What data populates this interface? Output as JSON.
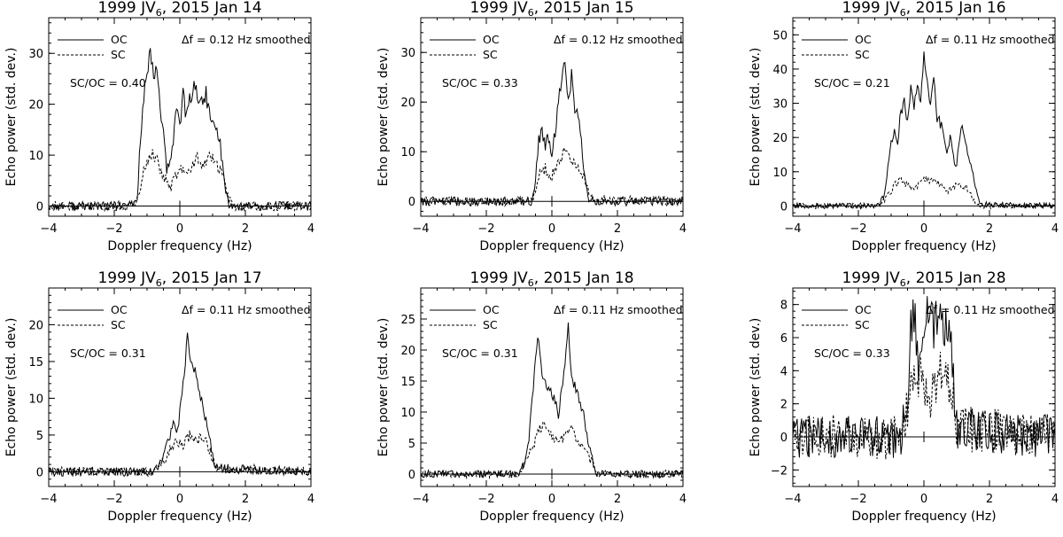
{
  "figure": {
    "common": {
      "xlabel": "Doppler frequency (Hz)",
      "ylabel": "Echo power (std. dev.)",
      "legend": [
        "OC",
        "SC"
      ],
      "xlim": [
        -4,
        4
      ],
      "xticks": [
        -4,
        -2,
        0,
        2,
        4
      ]
    }
  },
  "chart_data": [
    {
      "type": "line",
      "title_object": "1999 JV",
      "title_sub": "6",
      "title_date": ", 2015 Jan 14",
      "df_label": "Δf = 0.12 Hz smoothed",
      "ratio_label": "SC/OC = 0.40",
      "xlabel": "Doppler frequency (Hz)",
      "ylabel": "Echo power (std. dev.)",
      "ylim": [
        -2,
        37
      ],
      "yticks": [
        0,
        10,
        20,
        30
      ],
      "seed": 11,
      "noise": 0.9,
      "series": [
        {
          "name": "OC",
          "style": "solid",
          "x": [
            -4,
            -1.6,
            -1.3,
            -1.2,
            -1.1,
            -1.0,
            -0.9,
            -0.8,
            -0.7,
            -0.6,
            -0.5,
            -0.4,
            -0.3,
            -0.2,
            -0.1,
            0.0,
            0.1,
            0.2,
            0.3,
            0.4,
            0.5,
            0.6,
            0.7,
            0.8,
            0.9,
            1.0,
            1.1,
            1.2,
            1.3,
            1.4,
            1.5,
            1.6,
            4
          ],
          "values": [
            0,
            0,
            1,
            14,
            21,
            26,
            29.5,
            25,
            27,
            20,
            14,
            7,
            8,
            13,
            20,
            16,
            22,
            17,
            21,
            23,
            24,
            19,
            21,
            22,
            18,
            16,
            15,
            14,
            8,
            3,
            0.5,
            0,
            0
          ]
        },
        {
          "name": "SC",
          "style": "dashed",
          "x": [
            -4,
            -1.6,
            -1.3,
            -1.1,
            -0.9,
            -0.7,
            -0.5,
            -0.3,
            -0.1,
            0.1,
            0.3,
            0.5,
            0.7,
            0.9,
            1.1,
            1.3,
            1.5,
            1.7,
            4
          ],
          "values": [
            0,
            0,
            1,
            7,
            10.5,
            9,
            6,
            3.5,
            6,
            8,
            7,
            9.5,
            8,
            10,
            8,
            6,
            1.5,
            0,
            0
          ]
        }
      ]
    },
    {
      "type": "line",
      "title_object": "1999 JV",
      "title_sub": "6",
      "title_date": ", 2015 Jan 15",
      "df_label": "Δf = 0.12 Hz smoothed",
      "ratio_label": "SC/OC = 0.33",
      "xlabel": "Doppler frequency (Hz)",
      "ylabel": "Echo power (std. dev.)",
      "ylim": [
        -3,
        37
      ],
      "yticks": [
        0,
        10,
        20,
        30
      ],
      "seed": 23,
      "noise": 0.9,
      "series": [
        {
          "name": "OC",
          "style": "solid",
          "x": [
            -4,
            -0.6,
            -0.5,
            -0.4,
            -0.3,
            -0.2,
            -0.1,
            0.0,
            0.1,
            0.2,
            0.3,
            0.4,
            0.5,
            0.6,
            0.7,
            0.8,
            0.9,
            1.0,
            1.1,
            1.2,
            4
          ],
          "values": [
            0,
            0,
            4,
            12,
            14,
            11,
            13,
            10,
            14,
            20,
            24,
            29.5,
            20,
            25,
            19,
            17,
            12,
            5,
            1,
            0,
            0
          ]
        },
        {
          "name": "SC",
          "style": "dashed",
          "x": [
            -4,
            -0.6,
            -0.4,
            -0.2,
            0.0,
            0.2,
            0.4,
            0.5,
            0.6,
            0.8,
            1.0,
            1.2,
            4
          ],
          "values": [
            0,
            0,
            5,
            6.5,
            5,
            8,
            10,
            11,
            8,
            7,
            4,
            0.5,
            0
          ]
        }
      ]
    },
    {
      "type": "line",
      "title_object": "1999 JV",
      "title_sub": "6",
      "title_date": ", 2015 Jan 16",
      "df_label": "Δf = 0.11 Hz smoothed",
      "ratio_label": "SC/OC = 0.21",
      "xlabel": "Doppler frequency (Hz)",
      "ylabel": "Echo power (std. dev.)",
      "ylim": [
        -3,
        55
      ],
      "yticks": [
        0,
        10,
        20,
        30,
        40,
        50
      ],
      "seed": 37,
      "noise": 0.8,
      "series": [
        {
          "name": "OC",
          "style": "solid",
          "x": [
            -4,
            -1.4,
            -1.2,
            -1.1,
            -1.0,
            -0.9,
            -0.8,
            -0.7,
            -0.6,
            -0.5,
            -0.4,
            -0.3,
            -0.2,
            -0.1,
            0.0,
            0.1,
            0.2,
            0.3,
            0.4,
            0.5,
            0.6,
            0.7,
            0.8,
            0.9,
            1.0,
            1.1,
            1.2,
            1.3,
            1.4,
            1.5,
            1.6,
            1.7,
            4
          ],
          "values": [
            0,
            0,
            3,
            12,
            18,
            22,
            19,
            28,
            30,
            24,
            34,
            28,
            36,
            30,
            43.5,
            36,
            30,
            38,
            26,
            24,
            22,
            16,
            20,
            14,
            12,
            21,
            23,
            18,
            13,
            10,
            4,
            0.5,
            0
          ]
        },
        {
          "name": "SC",
          "style": "dashed",
          "x": [
            -4,
            -1.4,
            -1.1,
            -0.9,
            -0.7,
            -0.5,
            -0.3,
            -0.1,
            0.1,
            0.3,
            0.5,
            0.7,
            0.9,
            1.1,
            1.3,
            1.5,
            1.7,
            4
          ],
          "values": [
            0,
            0,
            3,
            6,
            7.5,
            6,
            5,
            7,
            8,
            7,
            6.5,
            4,
            5.5,
            6.5,
            5,
            2,
            0,
            0
          ]
        }
      ]
    },
    {
      "type": "line",
      "title_object": "1999 JV",
      "title_sub": "6",
      "title_date": ", 2015 Jan 17",
      "df_label": "Δf = 0.11 Hz smoothed",
      "ratio_label": "SC/OC = 0.31",
      "xlabel": "Doppler frequency (Hz)",
      "ylabel": "Echo power (std. dev.)",
      "ylim": [
        -2,
        25
      ],
      "yticks": [
        0,
        5,
        10,
        15,
        20
      ],
      "seed": 53,
      "noise": 0.6,
      "series": [
        {
          "name": "OC",
          "style": "solid",
          "x": [
            -4,
            -0.8,
            -0.6,
            -0.5,
            -0.4,
            -0.3,
            -0.2,
            -0.1,
            0.0,
            0.1,
            0.2,
            0.25,
            0.3,
            0.4,
            0.5,
            0.6,
            0.7,
            0.8,
            0.9,
            1.0,
            1.1,
            4
          ],
          "values": [
            0,
            0,
            1,
            2,
            3.5,
            5,
            7,
            5,
            8,
            12,
            17,
            19.5,
            16,
            15,
            13,
            11,
            9,
            7,
            5,
            2,
            0.5,
            0
          ]
        },
        {
          "name": "SC",
          "style": "dashed",
          "x": [
            -4,
            -0.8,
            -0.5,
            -0.3,
            -0.1,
            0.1,
            0.3,
            0.5,
            0.7,
            0.9,
            1.1,
            4
          ],
          "values": [
            0,
            0,
            1.5,
            3,
            4,
            3.5,
            5,
            4,
            5,
            3,
            0.5,
            0
          ]
        }
      ]
    },
    {
      "type": "line",
      "title_object": "1999 JV",
      "title_sub": "6",
      "title_date": ", 2015 Jan 18",
      "df_label": "Δf = 0.11 Hz smoothed",
      "ratio_label": "SC/OC = 0.31",
      "xlabel": "Doppler frequency (Hz)",
      "ylabel": "Echo power (std. dev.)",
      "ylim": [
        -2,
        30
      ],
      "yticks": [
        0,
        5,
        10,
        15,
        20,
        25
      ],
      "seed": 71,
      "noise": 0.6,
      "series": [
        {
          "name": "OC",
          "style": "solid",
          "x": [
            -4,
            -1.0,
            -0.8,
            -0.7,
            -0.6,
            -0.5,
            -0.4,
            -0.3,
            -0.2,
            -0.1,
            0.0,
            0.1,
            0.2,
            0.3,
            0.4,
            0.5,
            0.6,
            0.7,
            0.8,
            0.9,
            1.0,
            1.1,
            1.2,
            1.3,
            1.4,
            4
          ],
          "values": [
            0,
            0,
            2,
            6,
            12,
            19,
            22.5,
            16,
            15,
            14,
            13,
            12,
            9,
            14,
            18,
            23.5,
            15,
            14,
            13,
            11,
            9,
            5,
            3,
            1,
            0,
            0
          ]
        },
        {
          "name": "SC",
          "style": "dashed",
          "x": [
            -4,
            -1.0,
            -0.8,
            -0.6,
            -0.4,
            -0.2,
            0.0,
            0.2,
            0.4,
            0.6,
            0.8,
            1.0,
            1.2,
            1.4,
            4
          ],
          "values": [
            0,
            0,
            2,
            4,
            7,
            8,
            6,
            5,
            6,
            8,
            5,
            4,
            2,
            0,
            0
          ]
        }
      ]
    },
    {
      "type": "line",
      "title_object": "1999 JV",
      "title_sub": "6",
      "title_date": ", 2015 Jan 28",
      "df_label": "Δf = 0.11 Hz smoothed",
      "ratio_label": "SC/OC = 0.33",
      "xlabel": "Doppler frequency (Hz)",
      "ylabel": "Echo power (std. dev.)",
      "ylim": [
        -3,
        9
      ],
      "yticks": [
        -2,
        0,
        2,
        4,
        6,
        8
      ],
      "seed": 97,
      "noise": 1.3,
      "series": [
        {
          "name": "OC",
          "style": "solid",
          "x": [
            -4,
            -0.7,
            -0.5,
            -0.4,
            -0.3,
            -0.2,
            -0.1,
            0.0,
            0.1,
            0.2,
            0.3,
            0.4,
            0.5,
            0.6,
            0.7,
            0.8,
            0.9,
            1.0,
            4
          ],
          "values": [
            0,
            0,
            2,
            7,
            7.8,
            5,
            4,
            6,
            7,
            6.5,
            7,
            7.8,
            7.9,
            7,
            7.5,
            6,
            3,
            0.5,
            0
          ]
        },
        {
          "name": "SC",
          "style": "dashed",
          "x": [
            -4,
            -0.7,
            -0.5,
            -0.3,
            -0.1,
            0.1,
            0.3,
            0.5,
            0.7,
            0.9,
            1.0,
            4
          ],
          "values": [
            0,
            0,
            2,
            3,
            3.5,
            2,
            3,
            4,
            3,
            2.5,
            0.5,
            0
          ]
        }
      ]
    }
  ]
}
